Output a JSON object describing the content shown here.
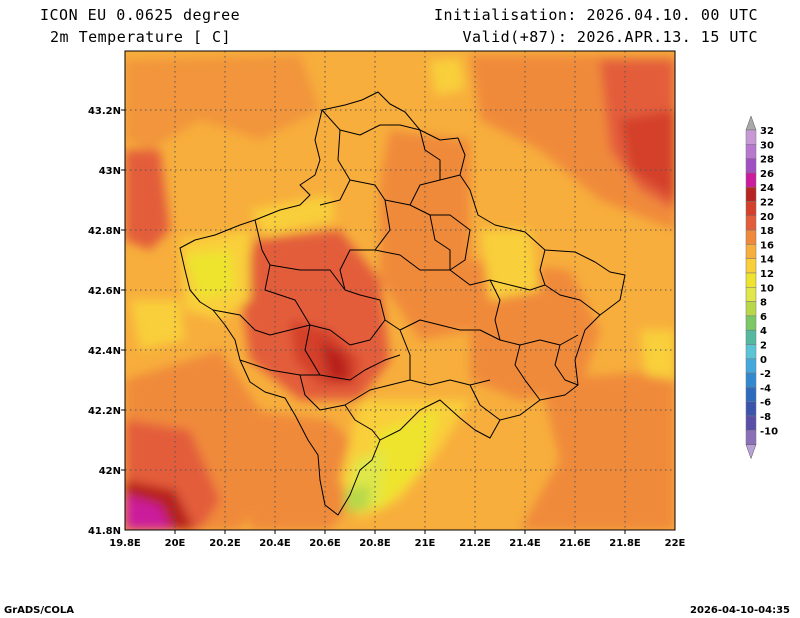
{
  "header": {
    "model": "ICON EU 0.0625 degree",
    "variable": "2m Temperature [ C]",
    "init": "Initialisation: 2026.04.10. 00 UTC",
    "valid": "Valid(+87): 2026.APR.13. 15 UTC"
  },
  "axes": {
    "lat_labels": [
      "43.2N",
      "43N",
      "42.8N",
      "42.6N",
      "42.4N",
      "42.2N",
      "42N",
      "41.8N"
    ],
    "lon_labels": [
      "19.8E",
      "20E",
      "20.2E",
      "20.4E",
      "20.6E",
      "20.8E",
      "21E",
      "21.2E",
      "21.4E",
      "21.6E",
      "21.8E",
      "22E"
    ]
  },
  "legend": {
    "labels": [
      "32",
      "30",
      "28",
      "26",
      "24",
      "22",
      "20",
      "18",
      "16",
      "14",
      "12",
      "10",
      "8",
      "6",
      "4",
      "2",
      "0",
      "-2",
      "-4",
      "-6",
      "-8",
      "-10"
    ],
    "colors": [
      "#c79ad6",
      "#b978cf",
      "#a24fc3",
      "#cc1b9c",
      "#b8241f",
      "#d4402c",
      "#e35d3a",
      "#f08a3a",
      "#f7ae3c",
      "#f9cf3a",
      "#eee42f",
      "#dfe74a",
      "#b8d84a",
      "#7cc865",
      "#55b9a0",
      "#5bc5d6",
      "#43a8dc",
      "#3289cf",
      "#2d6bbf",
      "#3b55ad",
      "#5a4fa8",
      "#8b6fb8"
    ],
    "top_arrow_color": "#a9a9a9",
    "bottom_arrow_color": "#b7a1d7"
  },
  "footer": {
    "left": "GrADS/COLA",
    "right": "2026-04-10-04:35"
  }
}
